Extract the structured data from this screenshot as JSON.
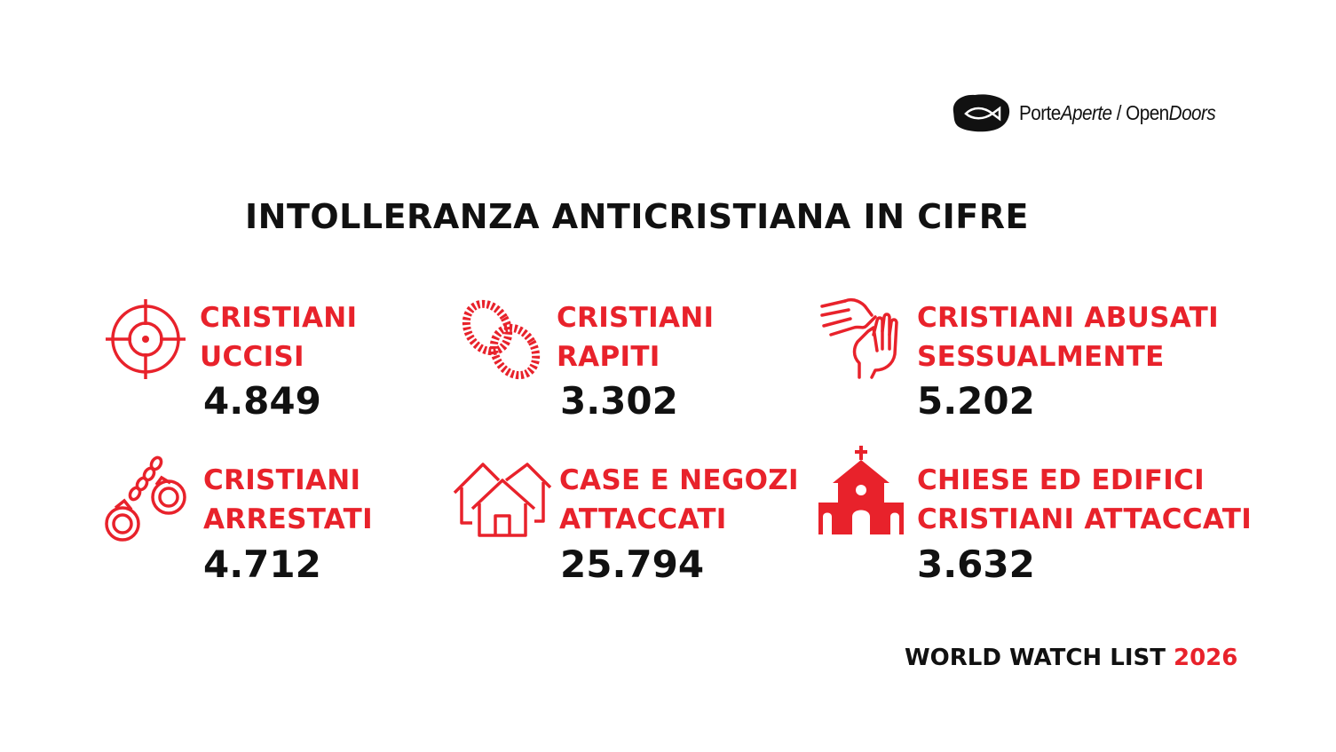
{
  "brand": {
    "porte": "Porte",
    "aperte": "Aperte",
    "separator": " / ",
    "open": "Open",
    "doors": "Doors"
  },
  "title": "INTOLLERANZA ANTICRISTIANA IN CIFRE",
  "colors": {
    "accent": "#e8222b",
    "text": "#111111",
    "background": "#ffffff"
  },
  "stats": [
    {
      "icon": "target-icon",
      "line1": "CRISTIANI",
      "line2": "UCCISI",
      "value": "4.849"
    },
    {
      "icon": "rope-icon",
      "line1": "CRISTIANI",
      "line2": "RAPITI",
      "value": "3.302"
    },
    {
      "icon": "hands-icon",
      "line1": "CRISTIANI ABUSATI",
      "line2": "SESSUALMENTE",
      "value": "5.202"
    },
    {
      "icon": "handcuffs-icon",
      "line1": "CRISTIANI",
      "line2": "ARRESTATI",
      "value": "4.712"
    },
    {
      "icon": "houses-icon",
      "line1": "CASE E NEGOZI",
      "line2": "ATTACCATI",
      "value": "25.794"
    },
    {
      "icon": "church-icon",
      "line1": "CHIESE ED EDIFICI",
      "line2": "CRISTIANI ATTACCATI",
      "value": "3.632"
    }
  ],
  "footer": {
    "text": "WORLD WATCH LIST ",
    "year": "2026"
  }
}
